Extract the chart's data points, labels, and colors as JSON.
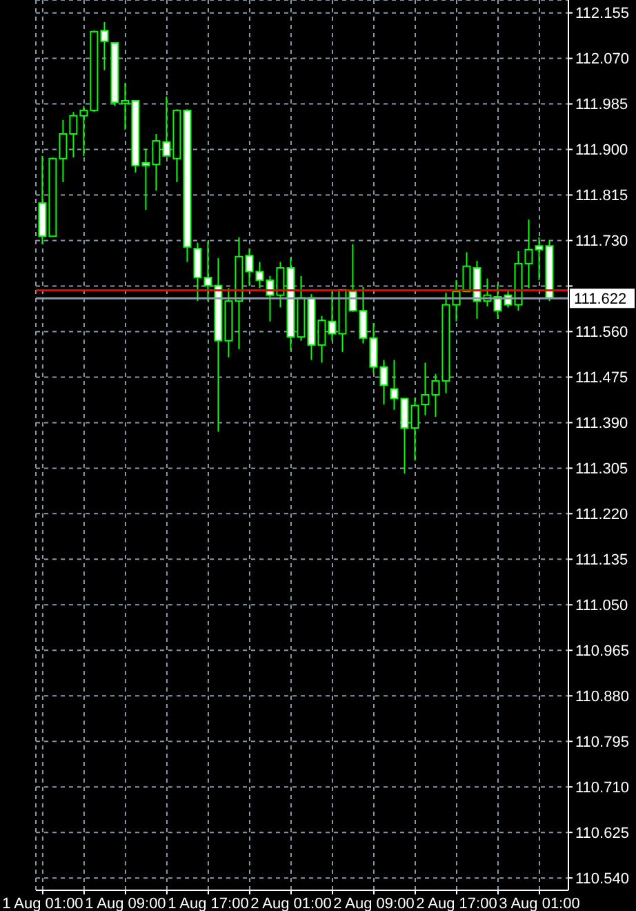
{
  "chart_data": {
    "type": "candlestick",
    "color": "#00ff00",
    "categories": [
      "1 Aug 01:00",
      null,
      null,
      null,
      null,
      null,
      null,
      null,
      "1 Aug 09:00",
      null,
      null,
      null,
      null,
      null,
      null,
      null,
      "1 Aug 17:00",
      null,
      null,
      null,
      null,
      null,
      null,
      null,
      "2 Aug 01:00",
      null,
      null,
      null,
      null,
      null,
      null,
      null,
      "2 Aug 09:00",
      null,
      null,
      null,
      null,
      null,
      null,
      null,
      "2 Aug 17:00",
      null,
      null,
      null,
      null,
      null,
      null,
      null,
      "3 Aug 01:00",
      null
    ],
    "ohlc": [
      [
        111.8,
        111.888,
        111.723,
        111.738
      ],
      [
        111.738,
        111.885,
        111.738,
        111.883
      ],
      [
        111.883,
        111.955,
        111.839,
        111.929
      ],
      [
        111.929,
        111.97,
        111.885,
        111.963
      ],
      [
        111.963,
        111.981,
        111.888,
        111.973
      ],
      [
        111.973,
        112.122,
        111.97,
        112.12
      ],
      [
        112.122,
        112.138,
        112.048,
        112.102
      ],
      [
        112.099,
        112.099,
        111.981,
        111.988
      ],
      [
        111.986,
        112.024,
        111.937,
        111.991
      ],
      [
        111.991,
        111.991,
        111.857,
        111.87
      ],
      [
        111.875,
        111.901,
        111.787,
        111.87
      ],
      [
        111.872,
        111.929,
        111.823,
        111.916
      ],
      [
        111.914,
        111.999,
        111.888,
        111.888
      ],
      [
        111.883,
        111.975,
        111.839,
        111.973
      ],
      [
        111.973,
        111.975,
        111.69,
        111.718
      ],
      [
        111.715,
        111.726,
        111.617,
        111.661
      ],
      [
        111.661,
        111.728,
        111.617,
        111.646
      ],
      [
        111.646,
        111.697,
        111.373,
        111.543
      ],
      [
        111.543,
        111.641,
        111.512,
        111.617
      ],
      [
        111.617,
        111.736,
        111.527,
        111.7
      ],
      [
        111.702,
        111.715,
        111.646,
        111.672
      ],
      [
        111.672,
        111.69,
        111.641,
        111.656
      ],
      [
        111.656,
        111.664,
        111.579,
        111.628
      ],
      [
        111.628,
        111.69,
        111.605,
        111.679
      ],
      [
        111.679,
        111.697,
        111.525,
        111.55
      ],
      [
        111.55,
        111.664,
        111.543,
        111.623
      ],
      [
        111.623,
        111.63,
        111.507,
        111.535
      ],
      [
        111.535,
        111.589,
        111.502,
        111.581
      ],
      [
        111.579,
        111.638,
        111.543,
        111.556
      ],
      [
        111.556,
        111.638,
        111.522,
        111.638
      ],
      [
        111.635,
        111.723,
        111.597,
        111.599
      ],
      [
        111.599,
        111.643,
        111.538,
        111.548
      ],
      [
        111.548,
        111.576,
        111.483,
        111.494
      ],
      [
        111.494,
        111.507,
        111.424,
        111.46
      ],
      [
        111.453,
        111.507,
        111.414,
        111.435
      ],
      [
        111.435,
        111.435,
        111.295,
        111.38
      ],
      [
        111.38,
        111.437,
        111.319,
        111.422
      ],
      [
        111.424,
        111.502,
        111.404,
        111.442
      ],
      [
        111.442,
        111.481,
        111.401,
        111.468
      ],
      [
        111.468,
        111.633,
        111.445,
        111.61
      ],
      [
        111.61,
        111.656,
        111.579,
        111.635
      ],
      [
        111.635,
        111.708,
        111.635,
        111.682
      ],
      [
        111.679,
        111.692,
        111.584,
        111.617
      ],
      [
        111.617,
        111.659,
        111.607,
        111.628
      ],
      [
        111.625,
        111.648,
        111.584,
        111.599
      ],
      [
        111.628,
        111.638,
        111.605,
        111.61
      ],
      [
        111.61,
        111.71,
        111.599,
        111.687
      ],
      [
        111.687,
        111.769,
        111.641,
        111.713
      ],
      [
        111.72,
        111.736,
        111.656,
        111.713
      ],
      [
        111.72,
        111.731,
        111.617,
        111.623
      ]
    ],
    "ylim": [
      110.517,
      112.179
    ],
    "yticks": [
      112.155,
      {
        "value": 112.07,
        "label": "112.070"
      },
      111.985,
      {
        "value": 111.9,
        "label": "111.900"
      },
      111.815,
      {
        "value": 111.73,
        "label": "111.730"
      },
      {
        "value": 111.645,
        "label": null
      },
      {
        "value": 111.56,
        "label": "111.560"
      },
      111.475,
      {
        "value": 111.39,
        "label": "111.390"
      },
      111.305,
      {
        "value": 111.22,
        "label": "111.220"
      },
      111.135,
      {
        "value": 111.05,
        "label": "111.050"
      },
      110.965,
      {
        "value": 110.88,
        "label": "110.880"
      },
      110.795,
      {
        "value": 110.71,
        "label": "110.710"
      },
      110.625,
      {
        "value": 110.54,
        "label": "110.540"
      }
    ],
    "grid": true,
    "ref_lines": [
      {
        "axis": "y",
        "value": 111.637,
        "color": "#ff0000"
      },
      {
        "axis": "y",
        "value": 111.622,
        "label": "111.622",
        "color": "#8a9aa8"
      }
    ]
  }
}
